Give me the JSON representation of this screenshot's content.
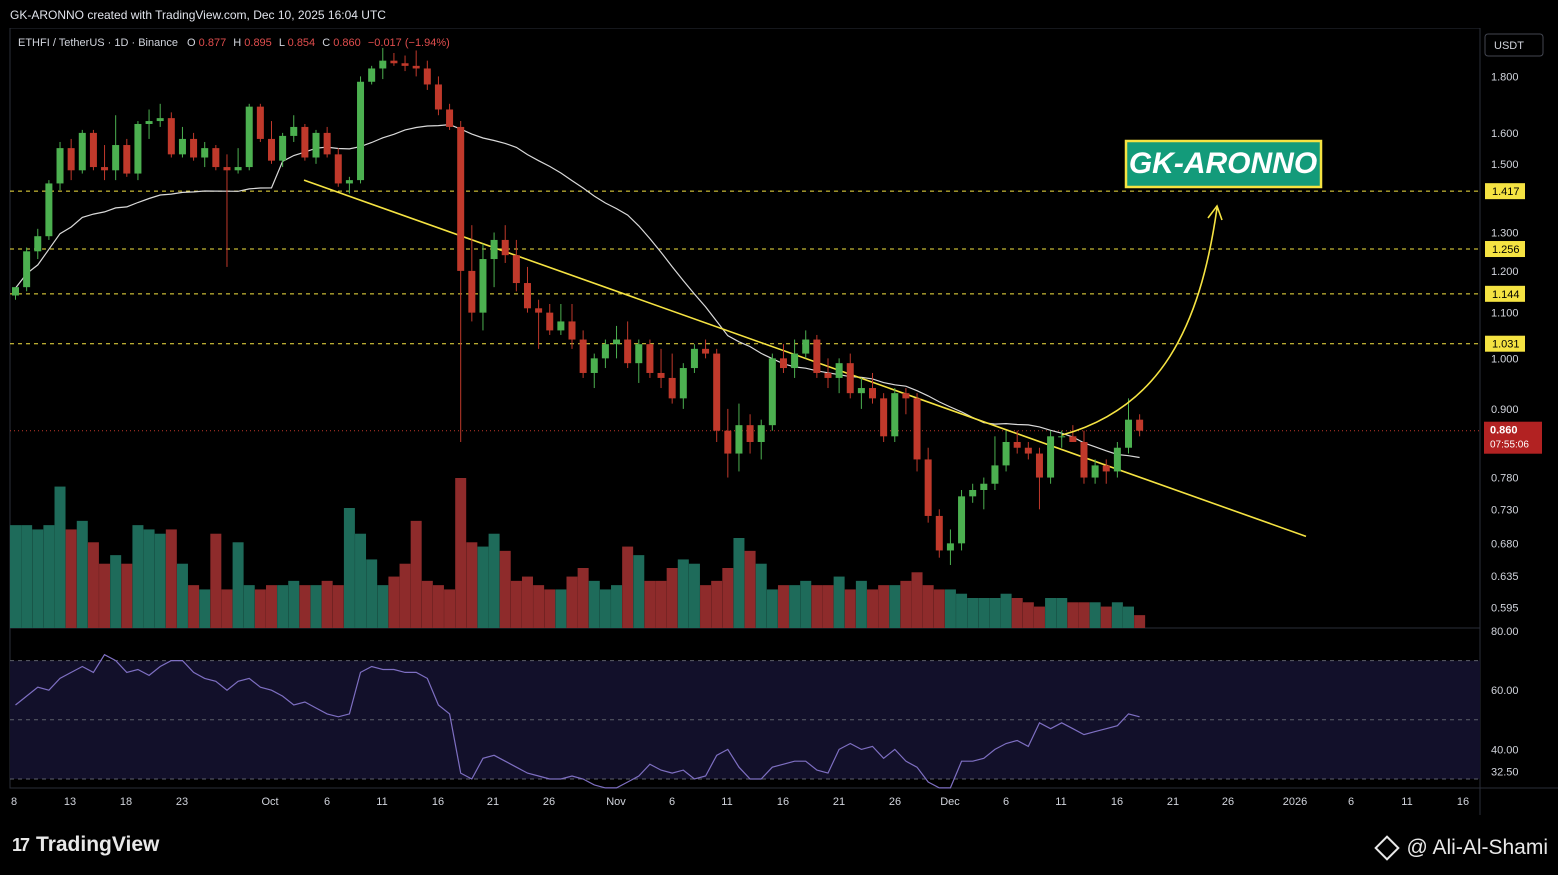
{
  "header": {
    "created_text": "GK-ARONNO created with TradingView.com, Dec 10, 2025 16:04 UTC"
  },
  "legend": {
    "symbol": "ETHFI / TetherUS · 1D · Binance",
    "o_label": "O",
    "o_value": "0.877",
    "h_label": "H",
    "h_value": "0.895",
    "l_label": "L",
    "l_value": "0.854",
    "c_label": "C",
    "c_value": "0.860",
    "change": "−0.017 (−1.94%)"
  },
  "currency_button": "USDT",
  "brand_label": "GK-ARONNO",
  "footer": {
    "logo_text": "TradingView",
    "watermark": "@ Ali-Al-Shami"
  },
  "colors": {
    "up": "#4cb050",
    "down": "#c0392b",
    "vol_up": "#1e6b5a",
    "vol_down": "#8e2b2b",
    "level": "#f5e342",
    "ma": "#d9d9d9",
    "rsi": "#7e6fc2",
    "brand_bg": "#139b7a"
  },
  "chart_data": {
    "type": "candlestick",
    "x_ticks": [
      "8",
      "13",
      "18",
      "23",
      "Oct",
      "6",
      "11",
      "16",
      "21",
      "26",
      "Nov",
      "6",
      "11",
      "16",
      "21",
      "26",
      "Dec",
      "6",
      "11",
      "16",
      "21",
      "26",
      "2026",
      "6",
      "11",
      "16"
    ],
    "price_axis": {
      "scale": "log",
      "range": [
        0.57,
        1.95
      ],
      "ticks": [
        "1.800",
        "1.600",
        "1.500",
        "1.300",
        "1.200",
        "1.100",
        "1.000",
        "0.900",
        "0.780",
        "0.730",
        "0.680",
        "0.635",
        "0.595"
      ]
    },
    "levels": [
      {
        "label": "1.417",
        "value": 1.417
      },
      {
        "label": "1.256",
        "value": 1.256
      },
      {
        "label": "1.144",
        "value": 1.144
      },
      {
        "label": "1.031",
        "value": 1.031
      }
    ],
    "last_price": {
      "value": 0.86,
      "label": "0.860",
      "countdown": "07:55:06"
    },
    "candles": [
      [
        1.14,
        1.16,
        1.13,
        1.16
      ],
      [
        1.16,
        1.26,
        1.15,
        1.25
      ],
      [
        1.25,
        1.31,
        1.23,
        1.29
      ],
      [
        1.29,
        1.45,
        1.28,
        1.44
      ],
      [
        1.44,
        1.57,
        1.42,
        1.55
      ],
      [
        1.55,
        1.58,
        1.45,
        1.48
      ],
      [
        1.48,
        1.61,
        1.47,
        1.6
      ],
      [
        1.6,
        1.61,
        1.48,
        1.49
      ],
      [
        1.49,
        1.56,
        1.45,
        1.48
      ],
      [
        1.48,
        1.66,
        1.45,
        1.56
      ],
      [
        1.56,
        1.58,
        1.46,
        1.47
      ],
      [
        1.47,
        1.64,
        1.45,
        1.63
      ],
      [
        1.63,
        1.68,
        1.58,
        1.64
      ],
      [
        1.64,
        1.7,
        1.62,
        1.65
      ],
      [
        1.65,
        1.67,
        1.52,
        1.53
      ],
      [
        1.53,
        1.62,
        1.52,
        1.58
      ],
      [
        1.58,
        1.6,
        1.51,
        1.52
      ],
      [
        1.52,
        1.57,
        1.49,
        1.55
      ],
      [
        1.55,
        1.56,
        1.48,
        1.49
      ],
      [
        1.49,
        1.53,
        1.21,
        1.48
      ],
      [
        1.48,
        1.55,
        1.47,
        1.49
      ],
      [
        1.49,
        1.7,
        1.48,
        1.69
      ],
      [
        1.69,
        1.7,
        1.57,
        1.58
      ],
      [
        1.58,
        1.64,
        1.5,
        1.51
      ],
      [
        1.51,
        1.6,
        1.49,
        1.59
      ],
      [
        1.59,
        1.66,
        1.57,
        1.62
      ],
      [
        1.62,
        1.63,
        1.51,
        1.52
      ],
      [
        1.52,
        1.61,
        1.5,
        1.6
      ],
      [
        1.6,
        1.62,
        1.52,
        1.53
      ],
      [
        1.53,
        1.55,
        1.43,
        1.44
      ],
      [
        1.44,
        1.46,
        1.41,
        1.45
      ],
      [
        1.45,
        1.8,
        1.44,
        1.78
      ],
      [
        1.78,
        1.84,
        1.77,
        1.83
      ],
      [
        1.83,
        1.91,
        1.79,
        1.86
      ],
      [
        1.86,
        1.89,
        1.84,
        1.85
      ],
      [
        1.85,
        1.88,
        1.82,
        1.84
      ],
      [
        1.84,
        1.9,
        1.8,
        1.83
      ],
      [
        1.83,
        1.86,
        1.75,
        1.77
      ],
      [
        1.77,
        1.8,
        1.66,
        1.68
      ],
      [
        1.68,
        1.7,
        1.61,
        1.62
      ],
      [
        1.62,
        1.64,
        0.84,
        1.2
      ],
      [
        1.2,
        1.32,
        1.08,
        1.1
      ],
      [
        1.1,
        1.27,
        1.06,
        1.23
      ],
      [
        1.23,
        1.3,
        1.16,
        1.28
      ],
      [
        1.28,
        1.32,
        1.22,
        1.24
      ],
      [
        1.24,
        1.28,
        1.15,
        1.17
      ],
      [
        1.17,
        1.21,
        1.1,
        1.11
      ],
      [
        1.11,
        1.13,
        1.02,
        1.1
      ],
      [
        1.1,
        1.12,
        1.05,
        1.06
      ],
      [
        1.06,
        1.12,
        1.05,
        1.08
      ],
      [
        1.08,
        1.12,
        1.02,
        1.04
      ],
      [
        1.04,
        1.06,
        0.96,
        0.97
      ],
      [
        0.97,
        1.01,
        0.94,
        1.0
      ],
      [
        1.0,
        1.04,
        0.98,
        1.03
      ],
      [
        1.03,
        1.07,
        1.0,
        1.04
      ],
      [
        1.04,
        1.08,
        0.98,
        0.99
      ],
      [
        0.99,
        1.04,
        0.95,
        1.03
      ],
      [
        1.03,
        1.04,
        0.96,
        0.97
      ],
      [
        0.97,
        1.02,
        0.94,
        0.96
      ],
      [
        0.96,
        1.01,
        0.91,
        0.92
      ],
      [
        0.92,
        0.99,
        0.9,
        0.98
      ],
      [
        0.98,
        1.03,
        0.97,
        1.02
      ],
      [
        1.02,
        1.04,
        1.0,
        1.01
      ],
      [
        1.01,
        1.02,
        0.84,
        0.86
      ],
      [
        0.86,
        0.9,
        0.78,
        0.82
      ],
      [
        0.82,
        0.91,
        0.79,
        0.87
      ],
      [
        0.87,
        0.89,
        0.82,
        0.84
      ],
      [
        0.84,
        0.88,
        0.81,
        0.87
      ],
      [
        0.87,
        1.01,
        0.86,
        1.0
      ],
      [
        1.0,
        1.03,
        0.97,
        0.98
      ],
      [
        0.98,
        1.04,
        0.96,
        1.01
      ],
      [
        1.01,
        1.06,
        1.0,
        1.04
      ],
      [
        1.04,
        1.05,
        0.96,
        0.97
      ],
      [
        0.97,
        1.0,
        0.94,
        0.96
      ],
      [
        0.96,
        1.0,
        0.93,
        0.99
      ],
      [
        0.99,
        1.01,
        0.92,
        0.93
      ],
      [
        0.93,
        0.96,
        0.9,
        0.94
      ],
      [
        0.94,
        0.97,
        0.91,
        0.92
      ],
      [
        0.92,
        0.93,
        0.84,
        0.85
      ],
      [
        0.85,
        0.94,
        0.84,
        0.93
      ],
      [
        0.93,
        0.94,
        0.89,
        0.92
      ],
      [
        0.92,
        0.93,
        0.79,
        0.81
      ],
      [
        0.81,
        0.83,
        0.71,
        0.72
      ],
      [
        0.72,
        0.73,
        0.66,
        0.67
      ],
      [
        0.67,
        0.7,
        0.65,
        0.68
      ],
      [
        0.68,
        0.76,
        0.67,
        0.75
      ],
      [
        0.75,
        0.77,
        0.74,
        0.76
      ],
      [
        0.76,
        0.78,
        0.73,
        0.77
      ],
      [
        0.77,
        0.85,
        0.76,
        0.8
      ],
      [
        0.8,
        0.86,
        0.79,
        0.84
      ],
      [
        0.84,
        0.86,
        0.82,
        0.83
      ],
      [
        0.83,
        0.84,
        0.81,
        0.82
      ],
      [
        0.82,
        0.83,
        0.73,
        0.78
      ],
      [
        0.78,
        0.86,
        0.77,
        0.85
      ],
      [
        0.85,
        0.86,
        0.83,
        0.85
      ],
      [
        0.85,
        0.87,
        0.84,
        0.84
      ],
      [
        0.84,
        0.86,
        0.77,
        0.78
      ],
      [
        0.78,
        0.81,
        0.77,
        0.8
      ],
      [
        0.8,
        0.81,
        0.77,
        0.79
      ],
      [
        0.79,
        0.84,
        0.78,
        0.83
      ],
      [
        0.83,
        0.92,
        0.82,
        0.88
      ],
      [
        0.88,
        0.89,
        0.85,
        0.86
      ]
    ],
    "volume": [
      24,
      24,
      23,
      24,
      33,
      23,
      25,
      20,
      15,
      17,
      15,
      24,
      23,
      22,
      23,
      15,
      10,
      9,
      22,
      9,
      20,
      10,
      9,
      10,
      10,
      11,
      10,
      10,
      11,
      10,
      28,
      22,
      16,
      10,
      12,
      15,
      25,
      11,
      10,
      9,
      35,
      20,
      19,
      22,
      18,
      11,
      12,
      10,
      9,
      9,
      12,
      14,
      11,
      9,
      10,
      19,
      17,
      11,
      11,
      14,
      16,
      15,
      10,
      11,
      14,
      21,
      18,
      15,
      9,
      10,
      10,
      11,
      10,
      10,
      12,
      9,
      11,
      9,
      10,
      10,
      11,
      13,
      10,
      9,
      9,
      8,
      7,
      7,
      7,
      8,
      7,
      6,
      5,
      7,
      7,
      6,
      6,
      6,
      5,
      6,
      5,
      3
    ]
  },
  "rsi": {
    "axis_ticks": [
      "80.00",
      "60.00",
      "40.00",
      "32.50"
    ],
    "range": [
      30,
      80
    ],
    "band_upper": 70,
    "band_mid": 50,
    "band_lower": 30,
    "values": [
      55,
      58,
      61,
      60,
      64,
      66,
      68,
      66,
      72,
      70,
      66,
      67,
      65,
      68,
      70,
      70,
      66,
      64,
      63,
      60,
      63,
      64,
      61,
      60,
      58,
      55,
      56,
      54,
      52,
      51,
      52,
      66,
      68,
      67,
      67,
      66,
      66,
      64,
      55,
      52,
      32,
      30,
      37,
      38,
      36,
      34,
      32,
      31,
      30,
      30,
      31,
      30,
      28,
      27,
      27,
      29,
      31,
      35,
      33,
      32,
      33,
      30,
      31,
      38,
      40,
      34,
      30,
      30,
      34,
      35,
      36,
      36,
      33,
      32,
      40,
      42,
      40,
      41,
      37,
      40,
      36,
      34,
      29,
      27,
      27,
      36,
      36,
      37,
      40,
      42,
      43,
      41,
      49,
      47,
      49,
      47,
      45,
      46,
      47,
      48,
      52,
      51
    ]
  }
}
